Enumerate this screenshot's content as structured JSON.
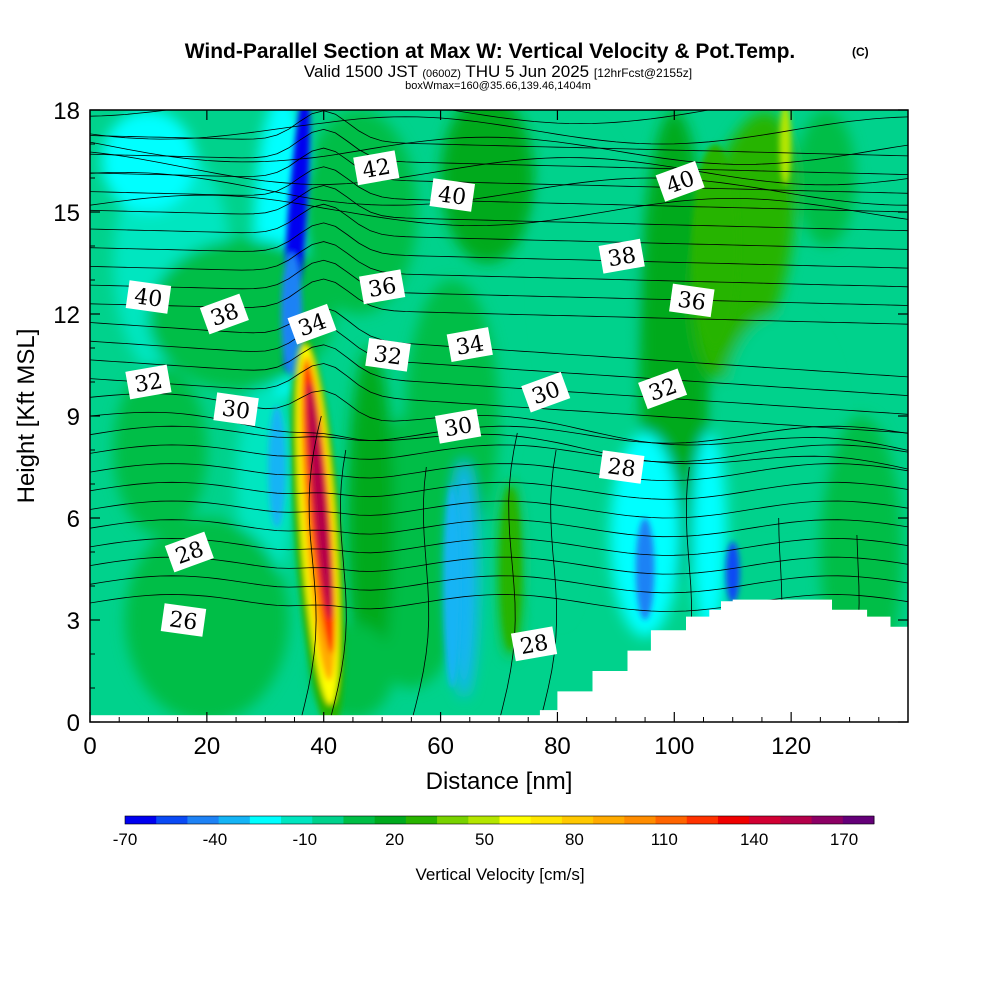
{
  "header": {
    "title": "Wind-Parallel Section at Max W: Vertical Velocity & Pot.Temp.",
    "title_mark": "(C)",
    "valid_prefix": "Valid 1500 JST",
    "valid_utc": "(0600Z)",
    "valid_day": "THU 5 Jun 2025",
    "forecast": "[12hrFcst@2155z]",
    "box_info": "boxWmax=160@35.66,139.46,1404m"
  },
  "chart_data": {
    "type": "heatmap",
    "xlabel": "Distance [nm]",
    "ylabel": "Height [Kft MSL]",
    "xlim": [
      0,
      140
    ],
    "ylim": [
      0,
      18
    ],
    "x_ticks": [
      0,
      20,
      40,
      60,
      80,
      100,
      120
    ],
    "x_tick_labels": [
      "0",
      "20",
      "40",
      "60",
      "80",
      "100",
      "120"
    ],
    "y_ticks": [
      0,
      3,
      6,
      9,
      12,
      15,
      18
    ],
    "y_tick_labels": [
      "0",
      "3",
      "6",
      "9",
      "12",
      "15",
      "18"
    ],
    "colorbar": {
      "label": "Vertical Velocity [cm/s]",
      "range": [
        -70,
        180
      ],
      "tick_values": [
        -70,
        -40,
        -10,
        20,
        50,
        80,
        110,
        140,
        170
      ],
      "tick_labels": [
        "-70",
        "-40",
        "-10",
        "20",
        "50",
        "80",
        "110",
        "140",
        "170"
      ],
      "colors": [
        "#0000f0",
        "#0a4af5",
        "#1e82f5",
        "#14b4f5",
        "#00ffff",
        "#00e6c0",
        "#00d28c",
        "#00be46",
        "#00aa1e",
        "#28b400",
        "#78d200",
        "#b4e600",
        "#ffff00",
        "#ffe600",
        "#ffc800",
        "#ffaa00",
        "#ff8c00",
        "#ff6400",
        "#ff3200",
        "#f00000",
        "#d20032",
        "#b4004a",
        "#8c0064",
        "#640078"
      ]
    },
    "terrain_profile": {
      "x": [
        0,
        77,
        77,
        80,
        80,
        86,
        86,
        92,
        92,
        96,
        96,
        102,
        102,
        106,
        106,
        108,
        108,
        110,
        110,
        127,
        127,
        133,
        133,
        137,
        137,
        140
      ],
      "height": [
        0,
        0,
        0.35,
        0.35,
        0.9,
        0.9,
        1.5,
        1.5,
        2.1,
        2.1,
        2.7,
        2.7,
        3.1,
        3.1,
        3.3,
        3.3,
        3.55,
        3.55,
        3.6,
        3.6,
        3.3,
        3.3,
        3.1,
        3.1,
        2.8,
        2.8
      ]
    },
    "features": [
      {
        "name": "updraft core",
        "x": 39,
        "height": 6.5,
        "w": 160
      },
      {
        "name": "updraft plume",
        "x": 38.5,
        "height": 4.5,
        "w": 70
      },
      {
        "name": "downdraft column",
        "x": 35,
        "height": 14,
        "w": -60
      },
      {
        "name": "downdraft",
        "x": 32,
        "height": 8,
        "w": -30
      },
      {
        "name": "downdraft",
        "x": 63,
        "height": 4,
        "w": -30
      },
      {
        "name": "updraft",
        "x": 72,
        "height": 4.5,
        "w": 30
      },
      {
        "name": "downdraft",
        "x": 110,
        "height": 4.3,
        "w": -50
      },
      {
        "name": "updraft",
        "x": 108,
        "height": 14,
        "w": 30
      }
    ],
    "isentrope_labels": [
      {
        "value": "42",
        "x": 49,
        "height": 16.3
      },
      {
        "value": "40",
        "x": 62,
        "height": 15.5
      },
      {
        "value": "40",
        "x": 101,
        "height": 15.9
      },
      {
        "value": "38",
        "x": 91,
        "height": 13.7
      },
      {
        "value": "40",
        "x": 10,
        "height": 12.5
      },
      {
        "value": "38",
        "x": 23,
        "height": 12.0
      },
      {
        "value": "36",
        "x": 50,
        "height": 12.8
      },
      {
        "value": "36",
        "x": 103,
        "height": 12.4
      },
      {
        "value": "34",
        "x": 38,
        "height": 11.7
      },
      {
        "value": "34",
        "x": 65,
        "height": 11.1
      },
      {
        "value": "32",
        "x": 51,
        "height": 10.8
      },
      {
        "value": "32",
        "x": 98,
        "height": 9.8
      },
      {
        "value": "32",
        "x": 10,
        "height": 10.0
      },
      {
        "value": "30",
        "x": 25,
        "height": 9.2
      },
      {
        "value": "30",
        "x": 78,
        "height": 9.7
      },
      {
        "value": "30",
        "x": 63,
        "height": 8.7
      },
      {
        "value": "28",
        "x": 91,
        "height": 7.5
      },
      {
        "value": "28",
        "x": 17,
        "height": 5.0
      },
      {
        "value": "28",
        "x": 76,
        "height": 2.3
      },
      {
        "value": "26",
        "x": 16,
        "height": 3.0
      }
    ]
  }
}
